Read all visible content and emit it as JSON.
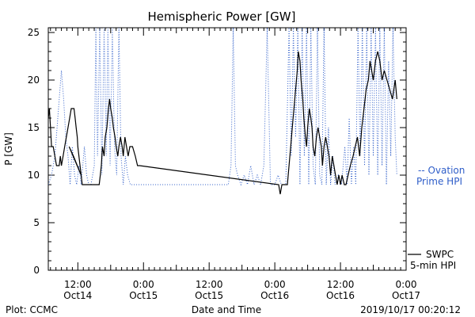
{
  "chart_data": {
    "type": "line",
    "title": "Hemispheric Power [GW]",
    "ylabel": "P [GW]",
    "xlabel": "Date and Time",
    "ylim": [
      0,
      25.5
    ],
    "yticks": [
      0,
      5,
      10,
      15,
      20,
      25
    ],
    "x_unit": "hours since 2019-10-13 00:00 UT",
    "xlim": [
      6.6,
      72
    ],
    "xticks": [
      {
        "x": 12,
        "line1": "12:00",
        "line2": "Oct14"
      },
      {
        "x": 24,
        "line1": "0:00",
        "line2": "Oct15"
      },
      {
        "x": 36,
        "line1": "12:00",
        "line2": "Oct15"
      },
      {
        "x": 48,
        "line1": "0:00",
        "line2": "Oct16"
      },
      {
        "x": 60,
        "line1": "12:00",
        "line2": "Oct16"
      },
      {
        "x": 72,
        "line1": "0:00",
        "line2": "Oct17"
      }
    ],
    "series": [
      {
        "name": "SWPC 5-min HPI",
        "legend_line1": "SWPC",
        "legend_line2": "5-min HPI",
        "color": "#000000",
        "style": "solid",
        "points": [
          [
            6.6,
            16
          ],
          [
            6.8,
            17
          ],
          [
            7.0,
            15
          ],
          [
            7.2,
            13
          ],
          [
            7.5,
            13
          ],
          [
            7.8,
            12
          ],
          [
            8.1,
            11
          ],
          [
            8.6,
            11
          ],
          [
            8.8,
            12
          ],
          [
            9.0,
            11
          ],
          [
            9.3,
            12
          ],
          [
            9.6,
            13
          ],
          [
            9.9,
            14
          ],
          [
            10.2,
            15
          ],
          [
            10.5,
            16
          ],
          [
            10.8,
            17
          ],
          [
            11.3,
            17
          ],
          [
            11.5,
            16
          ],
          [
            11.7,
            15
          ],
          [
            11.9,
            14
          ],
          [
            12.0,
            13
          ],
          [
            12.2,
            12
          ],
          [
            12.4,
            11
          ],
          [
            12.6,
            10
          ],
          [
            10.4,
            13
          ],
          [
            11.2,
            12
          ],
          [
            12.6,
            10
          ],
          [
            12.8,
            9
          ],
          [
            13.5,
            9
          ],
          [
            14.4,
            9
          ],
          [
            15.3,
            9
          ],
          [
            15.9,
            9
          ],
          [
            16.1,
            10
          ],
          [
            16.3,
            11
          ],
          [
            16.5,
            13
          ],
          [
            16.8,
            12
          ],
          [
            17.0,
            14
          ],
          [
            17.3,
            15
          ],
          [
            17.6,
            17
          ],
          [
            17.8,
            18
          ],
          [
            18.0,
            17
          ],
          [
            18.3,
            16
          ],
          [
            18.5,
            15
          ],
          [
            18.8,
            14
          ],
          [
            19.0,
            13
          ],
          [
            19.3,
            12
          ],
          [
            19.5,
            13
          ],
          [
            19.8,
            14
          ],
          [
            20.1,
            13
          ],
          [
            20.3,
            12
          ],
          [
            20.6,
            14
          ],
          [
            20.9,
            13
          ],
          [
            21.2,
            12
          ],
          [
            21.5,
            13
          ],
          [
            22.0,
            13
          ],
          [
            22.5,
            12
          ],
          [
            22.9,
            11
          ],
          [
            23.3,
            11
          ],
          [
            48.7,
            9
          ],
          [
            49.0,
            8
          ],
          [
            49.3,
            9
          ],
          [
            50.3,
            9
          ],
          [
            50.6,
            11
          ],
          [
            50.9,
            13
          ],
          [
            51.2,
            15
          ],
          [
            51.5,
            17
          ],
          [
            51.8,
            19
          ],
          [
            52.1,
            21
          ],
          [
            52.3,
            23
          ],
          [
            52.6,
            22
          ],
          [
            52.8,
            20
          ],
          [
            53.1,
            18
          ],
          [
            53.3,
            16
          ],
          [
            53.6,
            14
          ],
          [
            53.8,
            13
          ],
          [
            54.0,
            15
          ],
          [
            54.3,
            17
          ],
          [
            54.6,
            16
          ],
          [
            54.8,
            15
          ],
          [
            55.0,
            13
          ],
          [
            55.3,
            12
          ],
          [
            55.6,
            14
          ],
          [
            55.9,
            15
          ],
          [
            56.2,
            14
          ],
          [
            56.5,
            13
          ],
          [
            56.7,
            11
          ],
          [
            57.0,
            13
          ],
          [
            57.3,
            14
          ],
          [
            57.6,
            13
          ],
          [
            57.9,
            12
          ],
          [
            58.2,
            10
          ],
          [
            58.5,
            12
          ],
          [
            58.8,
            11
          ],
          [
            59.1,
            10
          ],
          [
            59.4,
            9
          ],
          [
            59.7,
            10
          ],
          [
            60.0,
            9
          ],
          [
            60.3,
            10
          ],
          [
            60.7,
            9
          ],
          [
            61.0,
            9
          ],
          [
            61.4,
            10
          ],
          [
            61.8,
            11
          ],
          [
            62.3,
            12
          ],
          [
            62.7,
            13
          ],
          [
            63.1,
            14
          ],
          [
            63.5,
            12
          ],
          [
            63.9,
            15
          ],
          [
            64.3,
            17
          ],
          [
            64.7,
            19
          ],
          [
            65.1,
            20
          ],
          [
            65.4,
            22
          ],
          [
            65.7,
            21
          ],
          [
            66.0,
            20
          ],
          [
            66.4,
            22
          ],
          [
            66.8,
            23
          ],
          [
            67.2,
            22
          ],
          [
            67.6,
            20
          ],
          [
            68.0,
            21
          ],
          [
            68.5,
            20
          ],
          [
            69.0,
            19
          ],
          [
            69.5,
            18
          ],
          [
            70.0,
            20
          ],
          [
            70.3,
            18
          ]
        ]
      },
      {
        "name": "Ovation Prime HPI",
        "legend_line1": "-- Ovation",
        "legend_line2": "Prime HPI",
        "color": "#2f5ec9",
        "style": "dotted",
        "points": [
          [
            6.6,
            9
          ],
          [
            7.2,
            10
          ],
          [
            7.8,
            12
          ],
          [
            8.2,
            15
          ],
          [
            8.6,
            18
          ],
          [
            9.0,
            21
          ],
          [
            9.4,
            18
          ],
          [
            9.8,
            14
          ],
          [
            10.2,
            12
          ],
          [
            10.6,
            9
          ],
          [
            11.0,
            13
          ],
          [
            11.4,
            10
          ],
          [
            11.8,
            9
          ],
          [
            12.2,
            11
          ],
          [
            12.6,
            9
          ],
          [
            13.2,
            13
          ],
          [
            13.6,
            10
          ],
          [
            14.0,
            9
          ],
          [
            14.4,
            9
          ],
          [
            15.0,
            11
          ],
          [
            15.3,
            25.5
          ],
          [
            15.6,
            12
          ],
          [
            16.0,
            25.5
          ],
          [
            16.4,
            10
          ],
          [
            16.8,
            25.5
          ],
          [
            17.2,
            12
          ],
          [
            17.5,
            25.5
          ],
          [
            17.9,
            11
          ],
          [
            18.3,
            25.5
          ],
          [
            18.7,
            13
          ],
          [
            19.1,
            10
          ],
          [
            19.5,
            25.5
          ],
          [
            19.9,
            12
          ],
          [
            20.3,
            9
          ],
          [
            20.7,
            12
          ],
          [
            21.1,
            10
          ],
          [
            21.6,
            9
          ],
          [
            22.5,
            9
          ],
          [
            24.0,
            9
          ],
          [
            27.0,
            9
          ],
          [
            30.0,
            9
          ],
          [
            33.0,
            9
          ],
          [
            36.0,
            9
          ],
          [
            38.0,
            9
          ],
          [
            39.5,
            9
          ],
          [
            40.0,
            11
          ],
          [
            40.4,
            25.5
          ],
          [
            40.8,
            11
          ],
          [
            41.2,
            10
          ],
          [
            41.8,
            9
          ],
          [
            42.4,
            10
          ],
          [
            43.0,
            9
          ],
          [
            43.6,
            11
          ],
          [
            44.2,
            9
          ],
          [
            44.8,
            10
          ],
          [
            45.4,
            9
          ],
          [
            46.0,
            11
          ],
          [
            46.6,
            25.5
          ],
          [
            47.2,
            9
          ],
          [
            48.0,
            9
          ],
          [
            48.6,
            10
          ],
          [
            49.2,
            9
          ],
          [
            50.0,
            9
          ],
          [
            50.6,
            25.5
          ],
          [
            51.0,
            12
          ],
          [
            51.4,
            25.5
          ],
          [
            51.8,
            14
          ],
          [
            52.2,
            25.5
          ],
          [
            52.6,
            9
          ],
          [
            53.0,
            25.5
          ],
          [
            53.4,
            12
          ],
          [
            53.8,
            25.5
          ],
          [
            54.2,
            9
          ],
          [
            54.6,
            25.5
          ],
          [
            55.0,
            11
          ],
          [
            55.4,
            9
          ],
          [
            55.8,
            25.5
          ],
          [
            56.2,
            10
          ],
          [
            56.6,
            9
          ],
          [
            57.0,
            25.5
          ],
          [
            57.4,
            9
          ],
          [
            57.8,
            15
          ],
          [
            58.2,
            9
          ],
          [
            58.6,
            12
          ],
          [
            59.0,
            9
          ],
          [
            59.6,
            10
          ],
          [
            60.2,
            9
          ],
          [
            60.8,
            13
          ],
          [
            61.2,
            9
          ],
          [
            61.6,
            16
          ],
          [
            62.0,
            9
          ],
          [
            62.4,
            13
          ],
          [
            62.8,
            9
          ],
          [
            63.2,
            25.5
          ],
          [
            63.6,
            12
          ],
          [
            64.0,
            25.5
          ],
          [
            64.4,
            11
          ],
          [
            64.8,
            25.5
          ],
          [
            65.2,
            10
          ],
          [
            65.6,
            25.5
          ],
          [
            66.0,
            12
          ],
          [
            66.4,
            25.5
          ],
          [
            66.8,
            10
          ],
          [
            67.2,
            25.5
          ],
          [
            67.6,
            11
          ],
          [
            68.0,
            25.5
          ],
          [
            68.4,
            9
          ],
          [
            68.8,
            22
          ],
          [
            69.2,
            12
          ],
          [
            69.6,
            25.5
          ],
          [
            70.0,
            14
          ],
          [
            70.3,
            10
          ]
        ]
      }
    ],
    "grid": false,
    "legend_placement": "right"
  },
  "footer": {
    "plot_label": "Plot: CCMC",
    "axis_label": "Date and Time",
    "timestamp": "2019/10/17 00:20:12"
  }
}
